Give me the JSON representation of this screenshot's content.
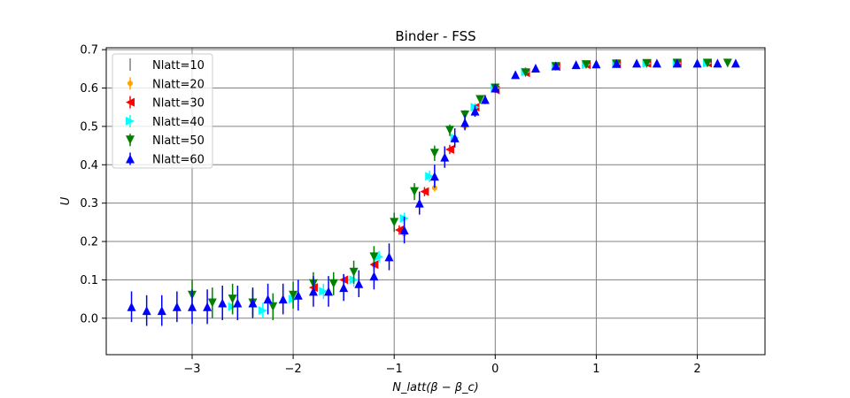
{
  "chart_data": {
    "type": "scatter",
    "title": "Binder - FSS",
    "xlabel": "N_latt(β − β_c)",
    "ylabel": "U",
    "xlim": [
      -3.85,
      2.67
    ],
    "ylim": [
      -0.095,
      0.705
    ],
    "xticks": [
      -3,
      -2,
      -1,
      0,
      1,
      2
    ],
    "xtick_labels": [
      "−3",
      "−2",
      "−1",
      "0",
      "1",
      "2"
    ],
    "yticks": [
      0.0,
      0.1,
      0.2,
      0.3,
      0.4,
      0.5,
      0.6,
      0.7
    ],
    "ytick_labels": [
      "0.0",
      "0.1",
      "0.2",
      "0.3",
      "0.4",
      "0.5",
      "0.6",
      "0.7"
    ],
    "grid": true,
    "legend_position": "upper-left",
    "series": [
      {
        "name": "Nlatt=10",
        "color": "#808080",
        "marker": "vline",
        "x": [
          -0.6,
          -0.3,
          0.0,
          0.3,
          0.6,
          0.9,
          1.2,
          1.5
        ],
        "y": [
          0.35,
          0.51,
          0.6,
          0.645,
          0.658,
          0.662,
          0.664,
          0.665
        ],
        "err": [
          0.01,
          0.01,
          0.01,
          0.005,
          0.004,
          0.003,
          0.003,
          0.003
        ]
      },
      {
        "name": "Nlatt=20",
        "color": "#ffa500",
        "marker": "circle",
        "x": [
          -1.2,
          -0.9,
          -0.6,
          -0.3,
          0.0,
          0.3,
          0.6,
          0.9,
          1.2,
          1.5,
          1.8
        ],
        "y": [
          0.14,
          0.22,
          0.34,
          0.5,
          0.6,
          0.645,
          0.657,
          0.661,
          0.663,
          0.664,
          0.665
        ],
        "err": [
          0.01,
          0.01,
          0.01,
          0.01,
          0.008,
          0.005,
          0.004,
          0.003,
          0.003,
          0.003,
          0.003
        ]
      },
      {
        "name": "Nlatt=30",
        "color": "#ff0000",
        "marker": "triangle-left",
        "x": [
          -1.8,
          -1.5,
          -1.2,
          -0.95,
          -0.7,
          -0.45,
          -0.2,
          0.0,
          0.3,
          0.6,
          0.9,
          1.2,
          1.5,
          1.8,
          2.1
        ],
        "y": [
          0.08,
          0.1,
          0.14,
          0.23,
          0.33,
          0.44,
          0.55,
          0.595,
          0.64,
          0.656,
          0.661,
          0.663,
          0.664,
          0.665,
          0.665
        ],
        "err": [
          0.015,
          0.015,
          0.012,
          0.012,
          0.012,
          0.012,
          0.01,
          0.008,
          0.005,
          0.004,
          0.003,
          0.003,
          0.003,
          0.003,
          0.003
        ]
      },
      {
        "name": "Nlatt=40",
        "color": "#00ffff",
        "marker": "triangle-right",
        "x": [
          -2.6,
          -2.3,
          -2.0,
          -1.7,
          -1.4,
          -1.15,
          -0.9,
          -0.65,
          -0.4,
          -0.2,
          0.0,
          0.3,
          0.6,
          0.9,
          1.2,
          1.5,
          1.8,
          2.1
        ],
        "y": [
          0.03,
          0.02,
          0.05,
          0.07,
          0.1,
          0.16,
          0.26,
          0.37,
          0.47,
          0.55,
          0.6,
          0.642,
          0.656,
          0.661,
          0.663,
          0.664,
          0.665,
          0.665
        ],
        "err": [
          0.02,
          0.02,
          0.02,
          0.02,
          0.018,
          0.015,
          0.015,
          0.015,
          0.012,
          0.01,
          0.008,
          0.005,
          0.004,
          0.003,
          0.003,
          0.003,
          0.003,
          0.003
        ]
      },
      {
        "name": "Nlatt=50",
        "color": "#008000",
        "marker": "triangle-down",
        "x": [
          -3.0,
          -2.8,
          -2.6,
          -2.4,
          -2.2,
          -2.0,
          -1.8,
          -1.6,
          -1.4,
          -1.2,
          -1.0,
          -0.8,
          -0.6,
          -0.45,
          -0.3,
          -0.15,
          0.0,
          0.3,
          0.6,
          0.9,
          1.2,
          1.5,
          1.8,
          2.1,
          2.3
        ],
        "y": [
          0.06,
          0.04,
          0.05,
          0.04,
          0.03,
          0.06,
          0.09,
          0.09,
          0.12,
          0.16,
          0.25,
          0.33,
          0.43,
          0.49,
          0.53,
          0.57,
          0.6,
          0.64,
          0.656,
          0.661,
          0.663,
          0.664,
          0.665,
          0.665,
          0.665
        ],
        "err": [
          0.04,
          0.04,
          0.04,
          0.035,
          0.035,
          0.035,
          0.03,
          0.03,
          0.03,
          0.028,
          0.025,
          0.022,
          0.02,
          0.015,
          0.012,
          0.01,
          0.008,
          0.005,
          0.004,
          0.003,
          0.003,
          0.003,
          0.003,
          0.003,
          0.003
        ]
      },
      {
        "name": "Nlatt=60",
        "color": "#0000ff",
        "marker": "triangle-up",
        "x": [
          -3.6,
          -3.45,
          -3.3,
          -3.15,
          -3.0,
          -2.85,
          -2.7,
          -2.55,
          -2.4,
          -2.25,
          -2.1,
          -1.95,
          -1.8,
          -1.65,
          -1.5,
          -1.35,
          -1.2,
          -1.05,
          -0.9,
          -0.75,
          -0.6,
          -0.5,
          -0.4,
          -0.3,
          -0.2,
          -0.1,
          0.0,
          0.2,
          0.4,
          0.6,
          0.8,
          1.0,
          1.2,
          1.4,
          1.6,
          1.8,
          2.0,
          2.2,
          2.38
        ],
        "y": [
          0.03,
          0.02,
          0.02,
          0.03,
          0.03,
          0.03,
          0.04,
          0.04,
          0.04,
          0.05,
          0.05,
          0.06,
          0.07,
          0.07,
          0.08,
          0.09,
          0.11,
          0.16,
          0.23,
          0.3,
          0.37,
          0.42,
          0.47,
          0.51,
          0.54,
          0.57,
          0.6,
          0.635,
          0.652,
          0.658,
          0.661,
          0.663,
          0.664,
          0.665,
          0.665,
          0.665,
          0.665,
          0.665,
          0.665
        ],
        "err": [
          0.04,
          0.04,
          0.04,
          0.04,
          0.045,
          0.045,
          0.045,
          0.045,
          0.04,
          0.04,
          0.04,
          0.04,
          0.04,
          0.04,
          0.035,
          0.035,
          0.035,
          0.035,
          0.035,
          0.03,
          0.03,
          0.028,
          0.025,
          0.02,
          0.015,
          0.012,
          0.01,
          0.006,
          0.004,
          0.003,
          0.003,
          0.003,
          0.003,
          0.003,
          0.003,
          0.003,
          0.003,
          0.003,
          0.003
        ]
      }
    ]
  }
}
